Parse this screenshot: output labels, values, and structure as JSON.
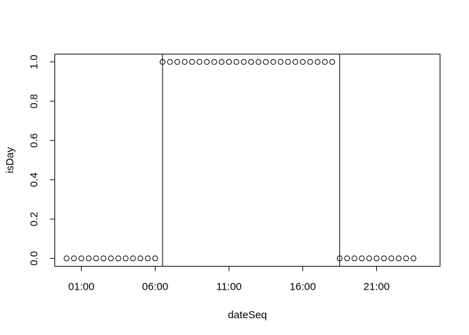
{
  "chart_data": {
    "type": "scatter",
    "title": "",
    "xlabel": "dateSeq",
    "ylabel": "isDay",
    "x_unit": "hour of day",
    "xlim": [
      -0.8,
      25.3
    ],
    "ylim": [
      -0.04,
      1.04
    ],
    "x_ticks": [
      1,
      6,
      11,
      16,
      21
    ],
    "x_tick_labels": [
      "01:00",
      "06:00",
      "11:00",
      "16:00",
      "21:00"
    ],
    "y_ticks": [
      0.0,
      0.2,
      0.4,
      0.6,
      0.8,
      1.0
    ],
    "y_tick_labels": [
      "0.0",
      "0.2",
      "0.4",
      "0.6",
      "0.8",
      "1.0"
    ],
    "vertical_lines": [
      6.5,
      18.5
    ],
    "marker": "open-circle",
    "grid": false,
    "points": {
      "x": [
        0,
        0.5,
        1,
        1.5,
        2,
        2.5,
        3,
        3.5,
        4,
        4.5,
        5,
        5.5,
        6,
        6.5,
        7,
        7.5,
        8,
        8.5,
        9,
        9.5,
        10,
        10.5,
        11,
        11.5,
        12,
        12.5,
        13,
        13.5,
        14,
        14.5,
        15,
        15.5,
        16,
        16.5,
        17,
        17.5,
        18,
        18.5,
        19,
        19.5,
        20,
        20.5,
        21,
        21.5,
        22,
        22.5,
        23,
        23.5
      ],
      "y": [
        0,
        0,
        0,
        0,
        0,
        0,
        0,
        0,
        0,
        0,
        0,
        0,
        0,
        1,
        1,
        1,
        1,
        1,
        1,
        1,
        1,
        1,
        1,
        1,
        1,
        1,
        1,
        1,
        1,
        1,
        1,
        1,
        1,
        1,
        1,
        1,
        1,
        0,
        0,
        0,
        0,
        0,
        0,
        0,
        0,
        0,
        0,
        0
      ]
    }
  }
}
